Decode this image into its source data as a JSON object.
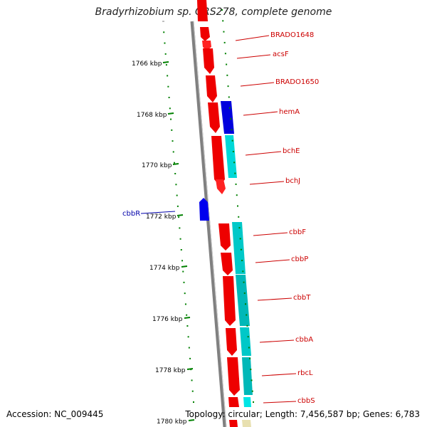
{
  "title": "Bradyrhizobium sp. ORS278, complete genome",
  "accession": "Accession: NC_009445",
  "topology": "Topology: circular; Length: 7,456,587 bp; Genes: 6,783",
  "colors": {
    "forward_gene": "#ff0000",
    "reverse_gene": "#0000ff",
    "cyan_track": "#00e5e5",
    "ticks": "#008000",
    "backbone": "#808080",
    "label_red": "#cc0000",
    "label_blue": "#0000aa"
  },
  "axis_labels": [
    "1766 kbp",
    "1768 kbp",
    "1770 kbp",
    "1772 kbp",
    "1774 kbp",
    "1776 kbp",
    "1778 kbp",
    "1780 kbp"
  ],
  "gene_labels": [
    "BRADO1648",
    "acsF",
    "BRADO1650",
    "hemA",
    "bchE",
    "bchJ",
    "cbbF",
    "cbbP",
    "cbbT",
    "cbbA",
    "rbcL",
    "cbbS"
  ],
  "left_gene_label": "cbbR"
}
